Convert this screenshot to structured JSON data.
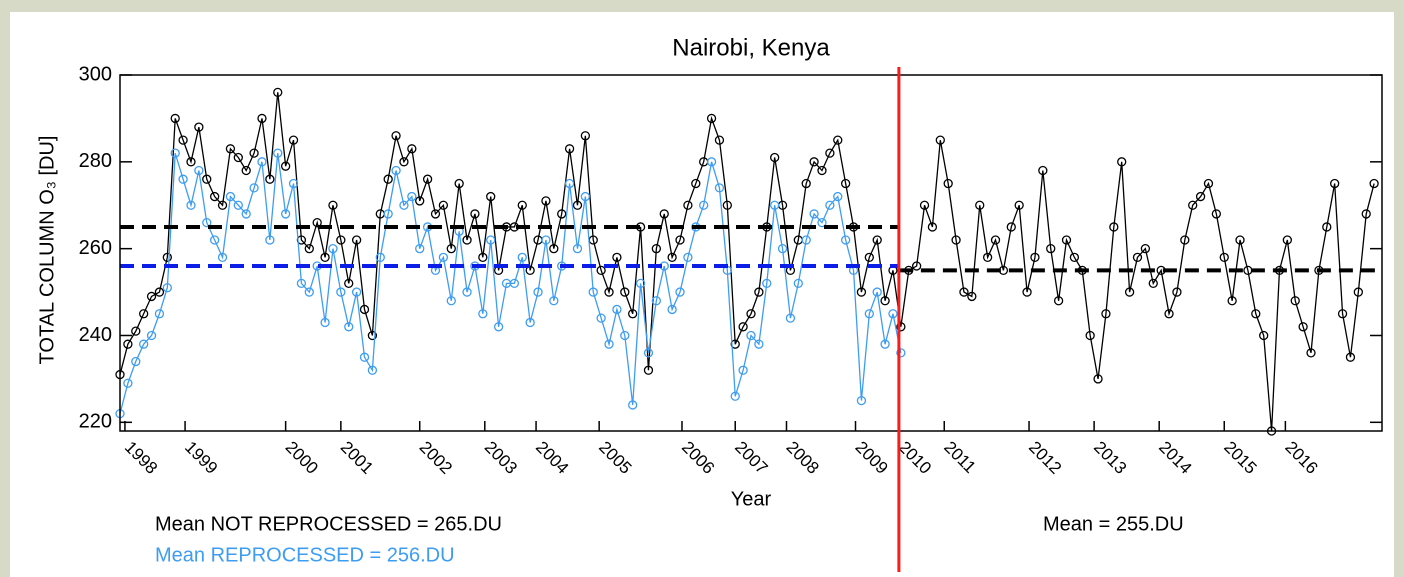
{
  "chart_data": {
    "type": "line",
    "title": "Nairobi, Kenya",
    "xlabel": "Year",
    "ylabel": "TOTAL COLUMN O₃ [DU]",
    "xlim": [
      0,
      640
    ],
    "ylim": [
      218,
      300
    ],
    "yticks": [
      220,
      240,
      260,
      280,
      300
    ],
    "xticks": [
      {
        "value": 2.5,
        "label": "1998"
      },
      {
        "value": 33,
        "label": "1999"
      },
      {
        "value": 84,
        "label": "2000"
      },
      {
        "value": 112,
        "label": "2001"
      },
      {
        "value": 152,
        "label": "2002"
      },
      {
        "value": 185,
        "label": "2003"
      },
      {
        "value": 211,
        "label": "2004"
      },
      {
        "value": 243,
        "label": "2005"
      },
      {
        "value": 285,
        "label": "2006"
      },
      {
        "value": 312,
        "label": "2007"
      },
      {
        "value": 338,
        "label": "2008"
      },
      {
        "value": 373,
        "label": "2009"
      },
      {
        "value": 395,
        "label": "2010"
      },
      {
        "value": 418,
        "label": "2011"
      },
      {
        "value": 461,
        "label": "2012"
      },
      {
        "value": 494,
        "label": "2013"
      },
      {
        "value": 527,
        "label": "2014"
      },
      {
        "value": 560,
        "label": "2015"
      },
      {
        "value": 591,
        "label": "2016"
      }
    ],
    "grid": false,
    "series": [
      {
        "name": "NOT REPROCESSED",
        "color": "#000000",
        "x": [
          0,
          4,
          8,
          12,
          16,
          20,
          24,
          28,
          32,
          36,
          40,
          44,
          48,
          52,
          56,
          60,
          64,
          68,
          72,
          76,
          80,
          84,
          88,
          92,
          96,
          100,
          104,
          108,
          112,
          116,
          120,
          124,
          128,
          132,
          136,
          140,
          144,
          148,
          152,
          156,
          160,
          164,
          168,
          172,
          176,
          180,
          184,
          188,
          192,
          196,
          200,
          204,
          208,
          212,
          216,
          220,
          224,
          228,
          232,
          236,
          240,
          244,
          248,
          252,
          256,
          260,
          264,
          268,
          272,
          276,
          280,
          284,
          288,
          292,
          296,
          300,
          304,
          308,
          312,
          316,
          320,
          324,
          328,
          332,
          336,
          340,
          344,
          348,
          352,
          356,
          360,
          364,
          368,
          372,
          376,
          380,
          384,
          388,
          392,
          396,
          400,
          404,
          408,
          412,
          416,
          420,
          424,
          428,
          432,
          436,
          440,
          444,
          448,
          452,
          456,
          460,
          464,
          468,
          472,
          476,
          480,
          484,
          488,
          492,
          496,
          500,
          504,
          508,
          512,
          516,
          520,
          524,
          528,
          532,
          536,
          540,
          544,
          548,
          552,
          556,
          560,
          564,
          568,
          572,
          576,
          580,
          584,
          588,
          592,
          596,
          600,
          604,
          608,
          612,
          616,
          620,
          624,
          628,
          632,
          636
        ],
        "values": [
          231,
          238,
          241,
          245,
          249,
          250,
          258,
          290,
          285,
          280,
          288,
          276,
          272,
          270,
          283,
          281,
          278,
          282,
          290,
          276,
          296,
          279,
          285,
          262,
          260,
          266,
          258,
          270,
          262,
          252,
          262,
          246,
          240,
          268,
          276,
          286,
          280,
          283,
          271,
          276,
          268,
          270,
          260,
          275,
          262,
          268,
          258,
          272,
          255,
          265,
          265,
          270,
          255,
          262,
          271,
          260,
          268,
          283,
          270,
          286,
          262,
          255,
          250,
          258,
          250,
          245,
          265,
          232,
          260,
          268,
          258,
          262,
          270,
          275,
          280,
          290,
          285,
          270,
          238,
          242,
          245,
          250,
          265,
          281,
          270,
          255,
          262,
          275,
          280,
          278,
          282,
          285,
          275,
          265,
          250,
          258,
          262,
          248,
          255,
          242,
          255,
          256,
          270,
          265,
          285,
          275,
          262,
          250,
          249,
          270,
          258,
          262,
          255,
          265,
          270,
          250,
          258,
          278,
          260,
          248,
          262,
          258,
          255,
          240,
          230,
          245,
          265,
          280,
          250,
          258,
          260,
          252,
          255,
          245,
          250,
          262,
          270,
          272,
          275,
          268,
          258,
          248,
          262,
          255,
          245,
          240,
          218,
          255,
          262,
          248,
          242,
          236,
          255,
          265,
          275,
          245,
          235,
          250,
          268,
          275
        ]
      },
      {
        "name": "REPROCESSED",
        "color": "#3d9df2",
        "x": [
          0,
          4,
          8,
          12,
          16,
          20,
          24,
          28,
          32,
          36,
          40,
          44,
          48,
          52,
          56,
          60,
          64,
          68,
          72,
          76,
          80,
          84,
          88,
          92,
          96,
          100,
          104,
          108,
          112,
          116,
          120,
          124,
          128,
          132,
          136,
          140,
          144,
          148,
          152,
          156,
          160,
          164,
          168,
          172,
          176,
          180,
          184,
          188,
          192,
          196,
          200,
          204,
          208,
          212,
          216,
          220,
          224,
          228,
          232,
          236,
          240,
          244,
          248,
          252,
          256,
          260,
          264,
          268,
          272,
          276,
          280,
          284,
          288,
          292,
          296,
          300,
          304,
          308,
          312,
          316,
          320,
          324,
          328,
          332,
          336,
          340,
          344,
          348,
          352,
          356,
          360,
          364,
          368,
          372,
          376,
          380,
          384,
          388,
          392,
          396
        ],
        "values": [
          222,
          229,
          234,
          238,
          240,
          245,
          251,
          282,
          276,
          270,
          278,
          266,
          262,
          258,
          272,
          270,
          268,
          274,
          280,
          262,
          282,
          268,
          275,
          252,
          250,
          256,
          243,
          260,
          250,
          242,
          250,
          235,
          232,
          258,
          268,
          278,
          270,
          272,
          260,
          265,
          255,
          258,
          248,
          264,
          250,
          256,
          245,
          262,
          242,
          252,
          252,
          258,
          243,
          250,
          262,
          248,
          256,
          275,
          260,
          272,
          250,
          244,
          238,
          246,
          240,
          224,
          252,
          236,
          248,
          256,
          246,
          250,
          258,
          265,
          270,
          280,
          274,
          255,
          226,
          232,
          240,
          238,
          252,
          270,
          260,
          244,
          252,
          262,
          268,
          266,
          270,
          272,
          262,
          255,
          225,
          245,
          250,
          238,
          245,
          236
        ]
      }
    ],
    "means": [
      {
        "value": 265,
        "x": [
          0,
          395
        ],
        "color": "#000000"
      },
      {
        "value": 256,
        "x": [
          0,
          395
        ],
        "color": "#0a1ee8"
      },
      {
        "value": 255,
        "x": [
          395,
          640
        ],
        "color": "#000000"
      }
    ],
    "divider": {
      "x": 395,
      "color": "#ff1a1a"
    },
    "annotations": [
      {
        "text": "Mean NOT REPROCESSED = 265.DU",
        "color": "#000000"
      },
      {
        "text": "Mean REPROCESSED = 256.DU",
        "color": "#3d9df2"
      },
      {
        "text": "Mean = 255.DU",
        "color": "#000000"
      }
    ]
  }
}
